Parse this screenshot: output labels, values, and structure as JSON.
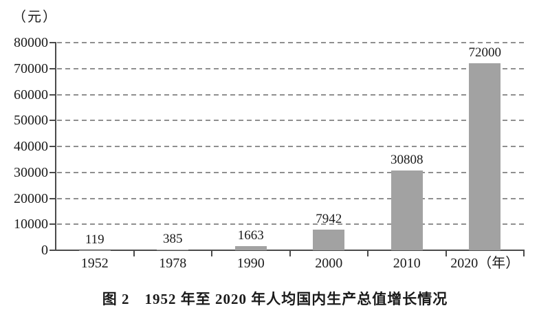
{
  "unit_label": "（元）",
  "caption": "图 2　1952 年至 2020 年人均国内生产总值增长情况",
  "chart_data": {
    "type": "bar",
    "title": "图 2　1952 年至 2020 年人均国内生产总值增长情况",
    "ylabel": "（元）",
    "xlabel": "（年）",
    "categories": [
      "1952",
      "1978",
      "1990",
      "2000",
      "2010",
      "2020"
    ],
    "x_labels": [
      "1952",
      "1978",
      "1990",
      "2000",
      "2010",
      "2020（年）"
    ],
    "values": [
      119,
      385,
      1663,
      7942,
      30808,
      72000
    ],
    "value_labels": [
      "119",
      "385",
      "1663",
      "7942",
      "30808",
      "72000"
    ],
    "ylim": [
      0,
      80000
    ],
    "yticks": [
      0,
      10000,
      20000,
      30000,
      40000,
      50000,
      60000,
      70000,
      80000
    ],
    "grid": "horizontal-dashed",
    "legend": "none",
    "bar_color": "#a2a2a2",
    "grid_color": "#8f8f8f",
    "axis_color": "#4a4a4a",
    "text_color": "#1a1a1a"
  }
}
